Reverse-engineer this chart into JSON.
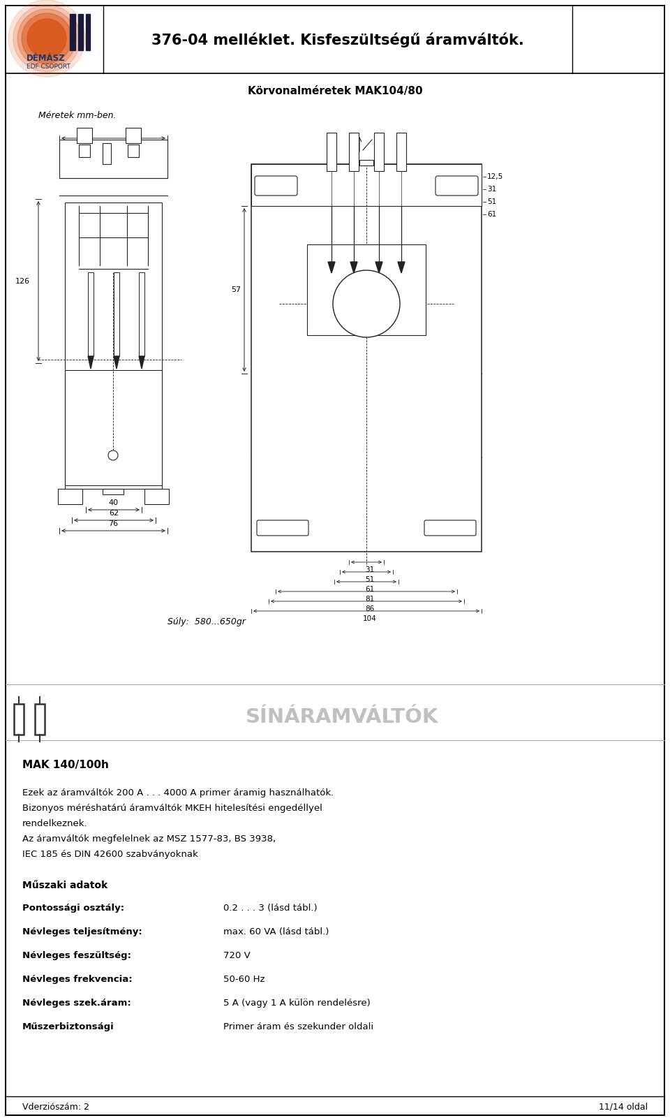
{
  "page_title": "376-04 melléklet. Kisfeszültségű áramváltók.",
  "diagram_title": "Körvonalméretek MAK104/80",
  "diagram_subtitle": "Méretek mm-ben.",
  "weight_label": "Súly:  580...650gr",
  "section_title": "SÍNÁRAMVÁLTÓK",
  "product_name": "MAK 140/100h",
  "description_lines": [
    "Ezek az áramváltók 200 A . . . 4000 A primer áramig használhatók.",
    "Bizonyos méréshatárú áramváltók MKEH hitelesítési engedéllyel",
    "rendelkeznek.",
    "Az áramváltók megfelelnek az MSZ 1577-83, BS 3938,",
    "IEC 185 és DIN 42600 szabványoknak"
  ],
  "tech_heading": "Műszaki adatok",
  "tech_rows": [
    [
      "Pontossági osztály:",
      "0.2 . . . 3 (lásd tábl.)"
    ],
    [
      "Névleges teljesítmény:",
      "max. 60 VA (lásd tábl.)"
    ],
    [
      "Névleges feszültség:",
      "720 V"
    ],
    [
      "Névleges frekvencia:",
      "50-60 Hz"
    ],
    [
      "Névleges szek.áram:",
      "5 A (vagy 1 A külön rendelésre)"
    ],
    [
      "Műszerbiztonsági",
      "Primer áram és szekunder oldali"
    ]
  ],
  "footer_left": "Vderziószám: 2",
  "footer_right": "11/14 oldal",
  "bg_color": "#ffffff",
  "text_color": "#000000",
  "section_title_color": "#c0c0c0",
  "logo_orange": "#d94f10",
  "demasz_blue": "#1a3a6b"
}
